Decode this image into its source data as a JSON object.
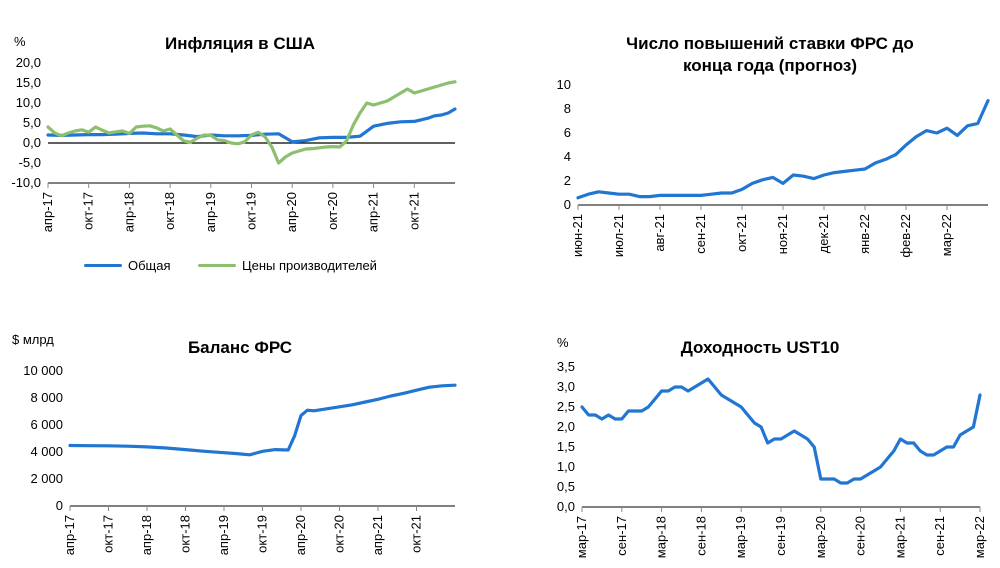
{
  "colors": {
    "blue": "#2176D2",
    "green": "#8CBF6E",
    "axis": "#000000",
    "tick": "#888888"
  },
  "chart_data": [
    {
      "id": "c1",
      "type": "line",
      "title": "Инфляция в США",
      "unit": "%",
      "ylim": [
        -10,
        20
      ],
      "yticks": [
        "-10,0",
        "-5,0",
        "0,0",
        "5,0",
        "10,0",
        "15,0",
        "20,0"
      ],
      "ytick_values": [
        -10,
        -5,
        0,
        5,
        10,
        15,
        20
      ],
      "xlim": [
        0,
        60
      ],
      "xticks": [
        "апр-17",
        "окт-17",
        "апр-18",
        "окт-18",
        "апр-19",
        "окт-19",
        "апр-20",
        "окт-20",
        "апр-21",
        "окт-21"
      ],
      "xtick_values": [
        0,
        6,
        12,
        18,
        24,
        30,
        36,
        42,
        48,
        54
      ],
      "zero_line": true,
      "legend": [
        "Общая",
        "Цены производителей"
      ],
      "series": [
        {
          "name": "Общая",
          "color": "#2176D2",
          "x": [
            0,
            2,
            4,
            6,
            8,
            10,
            12,
            14,
            16,
            18,
            20,
            22,
            24,
            26,
            28,
            30,
            32,
            34,
            36,
            38,
            40,
            42,
            44,
            46,
            48,
            50,
            52,
            54,
            56,
            57,
            58,
            59,
            60
          ],
          "values": [
            2.0,
            1.9,
            2.0,
            2.1,
            2.1,
            2.2,
            2.4,
            2.5,
            2.3,
            2.3,
            2.0,
            1.6,
            2.0,
            1.8,
            1.8,
            1.9,
            2.2,
            2.3,
            0.3,
            0.6,
            1.3,
            1.4,
            1.4,
            1.7,
            4.2,
            4.9,
            5.3,
            5.4,
            6.2,
            6.8,
            7.0,
            7.5,
            8.5
          ]
        },
        {
          "name": "Цены производителей",
          "color": "#8CBF6E",
          "x": [
            0,
            1,
            2,
            3,
            4,
            5,
            6,
            7,
            8,
            9,
            10,
            11,
            12,
            13,
            14,
            15,
            16,
            17,
            18,
            19,
            20,
            21,
            22,
            23,
            24,
            25,
            26,
            27,
            28,
            29,
            30,
            31,
            32,
            33,
            34,
            35,
            36,
            37,
            38,
            39,
            40,
            41,
            42,
            43,
            44,
            45,
            46,
            47,
            48,
            49,
            50,
            51,
            52,
            53,
            54,
            55,
            56,
            57,
            58,
            59,
            60
          ],
          "values": [
            4.0,
            2.5,
            1.8,
            2.5,
            3.0,
            3.3,
            2.7,
            4.0,
            3.2,
            2.5,
            2.8,
            3.0,
            2.4,
            4.0,
            4.2,
            4.3,
            3.8,
            3.0,
            3.5,
            2.0,
            0.5,
            0.2,
            1.2,
            2.0,
            1.9,
            0.8,
            0.6,
            0.0,
            -0.2,
            0.3,
            2.0,
            2.7,
            1.5,
            -1.0,
            -5.0,
            -3.5,
            -2.5,
            -2.0,
            -1.5,
            -1.4,
            -1.2,
            -1.0,
            -0.9,
            -1.0,
            0.5,
            4.5,
            7.5,
            10.0,
            9.5,
            10.0,
            10.5,
            11.5,
            12.5,
            13.5,
            12.5,
            13.0,
            13.5,
            14.0,
            14.5,
            15.0,
            15.3
          ]
        }
      ]
    },
    {
      "id": "c2",
      "type": "line",
      "title": "Число повышений ставки ФРС до конца года (прогноз)",
      "unit": "",
      "ylim": [
        0,
        10
      ],
      "yticks": [
        "0",
        "2",
        "4",
        "6",
        "8",
        "10"
      ],
      "ytick_values": [
        0,
        2,
        4,
        6,
        8,
        10
      ],
      "xlim": [
        0,
        10
      ],
      "xticks": [
        "июн-21",
        "июл-21",
        "авг-21",
        "сен-21",
        "окт-21",
        "ноя-21",
        "дек-21",
        "янв-22",
        "фев-22",
        "мар-22"
      ],
      "xtick_values": [
        0,
        1,
        2,
        3,
        4,
        5,
        6,
        7,
        8,
        9
      ],
      "series": [
        {
          "name": "",
          "color": "#2176D2",
          "x": [
            0,
            0.25,
            0.5,
            0.75,
            1,
            1.25,
            1.5,
            1.75,
            2,
            2.25,
            2.5,
            2.75,
            3,
            3.25,
            3.5,
            3.75,
            4,
            4.25,
            4.5,
            4.75,
            5,
            5.25,
            5.5,
            5.75,
            6,
            6.25,
            6.5,
            6.75,
            7,
            7.25,
            7.5,
            7.75,
            8,
            8.25,
            8.5,
            8.75,
            9,
            9.25,
            9.5,
            9.75,
            10
          ],
          "values": [
            0.6,
            0.9,
            1.1,
            1.0,
            0.9,
            0.9,
            0.7,
            0.7,
            0.8,
            0.8,
            0.8,
            0.8,
            0.8,
            0.9,
            1.0,
            1.0,
            1.3,
            1.8,
            2.1,
            2.3,
            1.8,
            2.5,
            2.4,
            2.2,
            2.5,
            2.7,
            2.8,
            2.9,
            3.0,
            3.5,
            3.8,
            4.2,
            5.0,
            5.7,
            6.2,
            6.0,
            6.4,
            5.8,
            6.6,
            6.8,
            8.7
          ]
        }
      ]
    },
    {
      "id": "c3",
      "type": "line",
      "title": "Баланс ФРС",
      "unit": "$ млрд",
      "ylim": [
        0,
        10000
      ],
      "yticks": [
        "0",
        "2 000",
        "4 000",
        "6 000",
        "8 000",
        "10 000"
      ],
      "ytick_values": [
        0,
        2000,
        4000,
        6000,
        8000,
        10000
      ],
      "xlim": [
        0,
        60
      ],
      "xticks": [
        "апр-17",
        "окт-17",
        "апр-18",
        "окт-18",
        "апр-19",
        "окт-19",
        "апр-20",
        "окт-20",
        "апр-21",
        "окт-21"
      ],
      "xtick_values": [
        0,
        6,
        12,
        18,
        24,
        30,
        36,
        42,
        48,
        54
      ],
      "series": [
        {
          "name": "",
          "color": "#2176D2",
          "x": [
            0,
            3,
            6,
            9,
            12,
            15,
            18,
            21,
            24,
            26,
            28,
            30,
            32,
            34,
            35,
            36,
            37,
            38,
            40,
            42,
            44,
            46,
            48,
            50,
            52,
            54,
            56,
            58,
            60
          ],
          "values": [
            4480,
            4470,
            4460,
            4430,
            4380,
            4300,
            4180,
            4050,
            3950,
            3880,
            3790,
            4050,
            4180,
            4150,
            5200,
            6700,
            7100,
            7050,
            7200,
            7350,
            7500,
            7700,
            7900,
            8150,
            8350,
            8580,
            8800,
            8900,
            8950
          ]
        }
      ]
    },
    {
      "id": "c4",
      "type": "line",
      "title": "Доходность UST10",
      "unit": "%",
      "ylim": [
        0,
        3.5
      ],
      "yticks": [
        "0,0",
        "0,5",
        "1,0",
        "1,5",
        "2,0",
        "2,5",
        "3,0",
        "3,5"
      ],
      "ytick_values": [
        0,
        0.5,
        1.0,
        1.5,
        2.0,
        2.5,
        3.0,
        3.5
      ],
      "xlim": [
        0,
        60
      ],
      "xticks": [
        "мар-17",
        "сен-17",
        "мар-18",
        "сен-18",
        "мар-19",
        "сен-19",
        "мар-20",
        "сен-20",
        "мар-21",
        "сен-21",
        "мар-22"
      ],
      "xtick_values": [
        0,
        6,
        12,
        18,
        24,
        30,
        36,
        42,
        48,
        54,
        60
      ],
      "series": [
        {
          "name": "",
          "color": "#2176D2",
          "x": [
            0,
            1,
            2,
            3,
            4,
            5,
            6,
            7,
            8,
            9,
            10,
            11,
            12,
            13,
            14,
            15,
            16,
            17,
            18,
            19,
            20,
            21,
            22,
            23,
            24,
            25,
            26,
            27,
            28,
            29,
            30,
            31,
            32,
            33,
            34,
            35,
            36,
            37,
            38,
            39,
            40,
            41,
            42,
            43,
            44,
            45,
            46,
            47,
            48,
            49,
            50,
            51,
            52,
            53,
            54,
            55,
            56,
            57,
            58,
            59,
            60
          ],
          "values": [
            2.5,
            2.3,
            2.3,
            2.2,
            2.3,
            2.2,
            2.2,
            2.4,
            2.4,
            2.4,
            2.5,
            2.7,
            2.9,
            2.9,
            3.0,
            3.0,
            2.9,
            3.0,
            3.1,
            3.2,
            3.0,
            2.8,
            2.7,
            2.6,
            2.5,
            2.3,
            2.1,
            2.0,
            1.6,
            1.7,
            1.7,
            1.8,
            1.9,
            1.8,
            1.7,
            1.5,
            0.7,
            0.7,
            0.7,
            0.6,
            0.6,
            0.7,
            0.7,
            0.8,
            0.9,
            1.0,
            1.2,
            1.4,
            1.7,
            1.6,
            1.6,
            1.4,
            1.3,
            1.3,
            1.4,
            1.5,
            1.5,
            1.8,
            1.9,
            2.0,
            2.8
          ]
        }
      ]
    }
  ]
}
